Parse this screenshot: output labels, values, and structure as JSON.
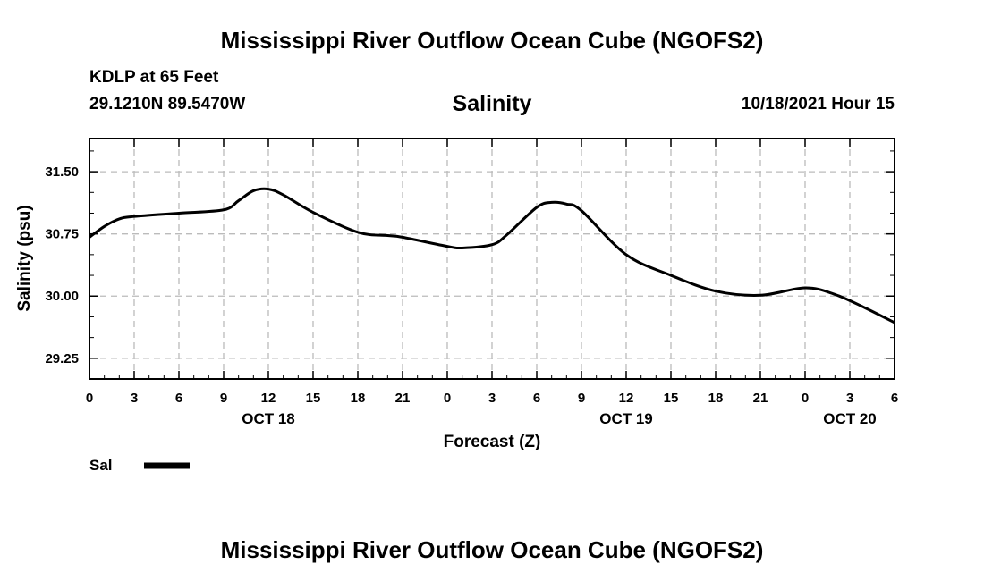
{
  "header": {
    "title": "Mississippi River Outflow Ocean Cube (NGOFS2)",
    "station": "KDLP at 65 Feet",
    "coords": "29.1210N  89.5470W",
    "variable": "Salinity",
    "datetime": "10/18/2021 Hour 15"
  },
  "footer": {
    "title": "Mississippi River Outflow Ocean Cube (NGOFS2)"
  },
  "colors": {
    "line": "#000000",
    "grid": "#bbbbbb",
    "axis": "#000000"
  },
  "chart_data": {
    "type": "line",
    "title": "Salinity",
    "xlabel": "Forecast (Z)",
    "ylabel": "Salinity (psu)",
    "grid": true,
    "xlim": [
      0,
      54
    ],
    "ylim": [
      29.0,
      31.9
    ],
    "x_tick_hours": [
      0,
      3,
      6,
      9,
      12,
      15,
      18,
      21,
      24,
      27,
      30,
      33,
      36,
      39,
      42,
      45,
      48,
      51,
      54
    ],
    "x_tick_labels": [
      "0",
      "3",
      "6",
      "9",
      "12",
      "15",
      "18",
      "21",
      "0",
      "3",
      "6",
      "9",
      "12",
      "15",
      "18",
      "21",
      "0",
      "3",
      "6"
    ],
    "date_labels": [
      {
        "hour": 12,
        "label": "OCT 18"
      },
      {
        "hour": 36,
        "label": "OCT 19"
      },
      {
        "hour": 51,
        "label": "OCT 20"
      }
    ],
    "y_ticks": [
      29.25,
      30.0,
      30.75,
      31.5
    ],
    "y_tick_labels": [
      "29.25",
      "30.00",
      "30.75",
      "31.50"
    ],
    "legend": {
      "placement": "bottom-left",
      "label": "Sal"
    },
    "series": [
      {
        "name": "Sal",
        "x": [
          0,
          1,
          2,
          3,
          6,
          9,
          10,
          11,
          12,
          13,
          15,
          18,
          20,
          21,
          24,
          25,
          27,
          28,
          30,
          31,
          32,
          33,
          36,
          39,
          42,
          45,
          48,
          50,
          52,
          54
        ],
        "values": [
          30.71,
          30.84,
          30.93,
          30.96,
          31.0,
          31.04,
          31.15,
          31.27,
          31.29,
          31.22,
          31.01,
          30.77,
          30.73,
          30.71,
          30.6,
          30.58,
          30.62,
          30.74,
          31.07,
          31.13,
          31.11,
          31.03,
          30.5,
          30.25,
          30.06,
          30.01,
          30.1,
          30.02,
          29.86,
          29.68
        ]
      }
    ]
  }
}
